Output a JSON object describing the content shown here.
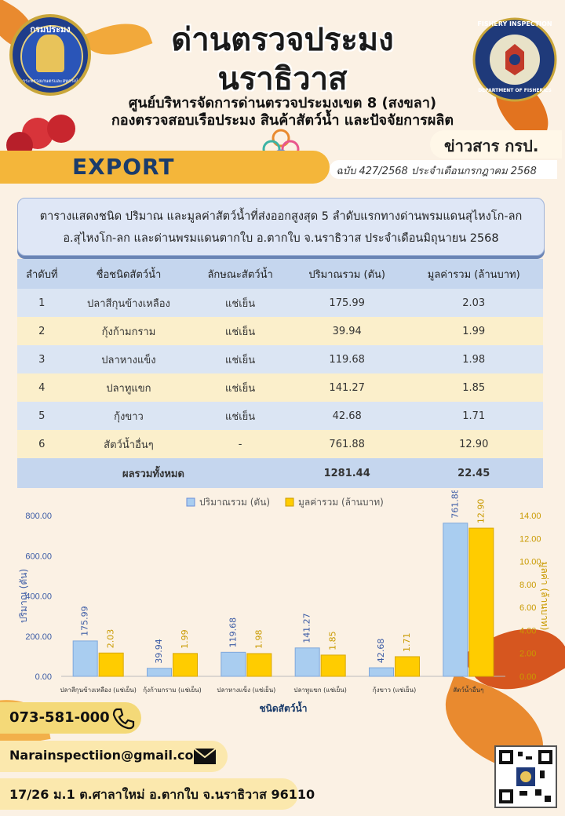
{
  "header": {
    "title_line1": "ด่านตรวจประมง",
    "title_line2": "นราธิวาส",
    "subtitle_line1": "ศูนย์บริหารจัดการด่านตรวจประมงเขต 8 (สงขลา)",
    "subtitle_line2": "กองตรวจสอบเรือประมง สินค้าสัตว์น้ำ และปัจจัยการผลิต",
    "export_label": "EXPORT",
    "news_label": "ข่าวสาร กรป.",
    "issue": "ฉบับ 427/2568 ประจำเดือนกรกฎาคม  2568",
    "logo_left_text": "กรมประมง",
    "logo_left_bottom": "กระทรวงเกษตรและสหกรณ์",
    "logo_right_top": "FISHERY INSPECTION",
    "logo_right_bottom": "DEPARTMENT OF FISHERIES"
  },
  "caption": {
    "line1": "ตารางแสดงชนิด ปริมาณ และมูลค่าสัตว์น้ำที่ส่งออกสูงสุด 5 ลำดับแรกทางด่านพรมแดนสุไหงโก-ลก",
    "line2": "อ.สุไหงโก-ลก และด่านพรมแดนตากใบ  อ.ตากใบ  จ.นราธิวาส  ประจำเดือนมิถุนายน  2568"
  },
  "table": {
    "headers": [
      "ลำดับที่",
      "ชื่อชนิดสัตว์น้ำ",
      "ลักษณะสัตว์น้ำ",
      "ปริมาณรวม (ตัน)",
      "มูลค่ารวม (ล้านบาท)"
    ],
    "rows": [
      [
        "1",
        "ปลาสีกุนข้างเหลือง",
        "แช่เย็น",
        "175.99",
        "2.03"
      ],
      [
        "2",
        "กุ้งก้ามกราม",
        "แช่เย็น",
        "39.94",
        "1.99"
      ],
      [
        "3",
        "ปลาหางแข็ง",
        "แช่เย็น",
        "119.68",
        "1.98"
      ],
      [
        "4",
        "ปลาทูแขก",
        "แช่เย็น",
        "141.27",
        "1.85"
      ],
      [
        "5",
        "กุ้งขาว",
        "แช่เย็น",
        "42.68",
        "1.71"
      ],
      [
        "6",
        "สัตว์น้ำอื่นๆ",
        "-",
        "761.88",
        "12.90"
      ]
    ],
    "total_label": "ผลรวมทั้งหมด",
    "total_qty": "1281.44",
    "total_value": "22.45"
  },
  "chart_data": {
    "type": "bar",
    "categories": [
      "ปลาสีกุนข้างเหลือง (แช่เย็น)",
      "กุ้งก้ามกราม (แช่เย็น)",
      "ปลาหางแข็ง (แช่เย็น)",
      "ปลาทูแขก (แช่เย็น)",
      "กุ้งขาว (แช่เย็น)",
      "สัตว์น้ำอื่นๆ"
    ],
    "series": [
      {
        "name": "ปริมาณรวม (ตัน)",
        "values": [
          175.99,
          39.94,
          119.68,
          141.27,
          42.68,
          761.88
        ],
        "color": "#a9cdf0",
        "axis": "left"
      },
      {
        "name": "มูลค่ารวม (ล้านบาท)",
        "values": [
          2.03,
          1.99,
          1.98,
          1.85,
          1.71,
          12.9
        ],
        "color": "#ffcc00",
        "axis": "right"
      }
    ],
    "xlabel": "ชนิดสัตว์น้ำ",
    "ylabel": "ปริมาณ (ตัน)",
    "ylabel_right": "มูลค่า (ล้านบาท)",
    "ylim": [
      0,
      800
    ],
    "ylim_right": [
      0,
      14
    ],
    "yticks": [
      "0.00",
      "200.00",
      "400.00",
      "600.00",
      "800.00"
    ],
    "yticks_right": [
      "0.00",
      "2.00",
      "4.00",
      "6.00",
      "8.00",
      "10.00",
      "12.00",
      "14.00"
    ],
    "value_labels_left": [
      "175.99",
      "39.94",
      "119.68",
      "141.27",
      "42.68",
      "761.88"
    ],
    "value_labels_right": [
      "2.03",
      "1.99",
      "1.98",
      "1.85",
      "1.71",
      "12.90"
    ],
    "legend_position": "top-center",
    "grid": false
  },
  "contact": {
    "phone": "073-581-000",
    "email": "Narainspectiion@gmail.com",
    "address": "17/26 ม.1 ต.ศาลาใหม่ อ.ตากใบ จ.นราธิวาส 96110"
  },
  "icons": [
    "phone-icon",
    "mail-icon",
    "qr-code-icon",
    "department-logo",
    "fishery-inspection-logo"
  ]
}
